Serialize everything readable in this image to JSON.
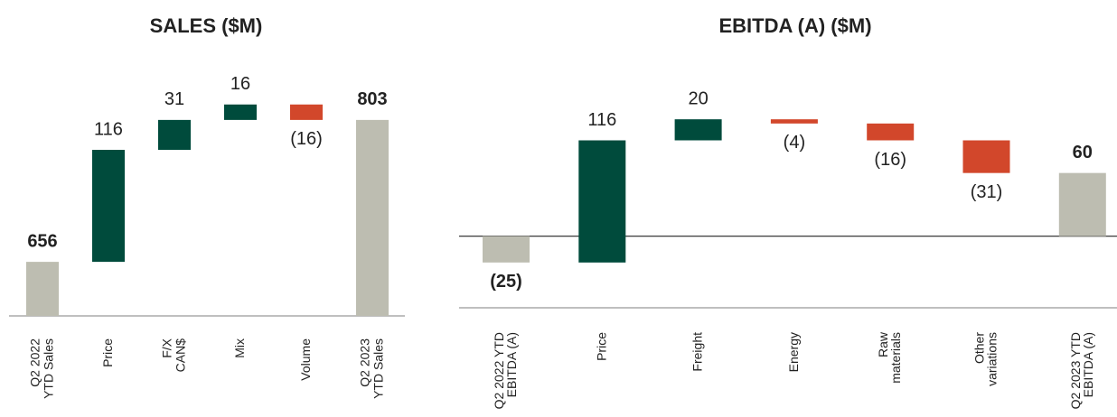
{
  "chart_data": [
    {
      "type": "waterfall",
      "title": "SALES ($M)",
      "categories": [
        "Q2 2022\nYTD Sales",
        "Price",
        "F/X\nCAN$",
        "Mix",
        "Volume",
        "Q2 2023\nYTD Sales"
      ],
      "values": [
        656,
        116,
        31,
        16,
        -16,
        803
      ],
      "value_labels": [
        "656",
        "116",
        "31",
        "16",
        "(16)",
        "803"
      ],
      "total_color": "#bdbdb1",
      "increase_color": "#004b3c",
      "decrease_color": "#d2472b",
      "ylim": [
        600,
        830
      ]
    },
    {
      "type": "waterfall",
      "title": "EBITDA (A) ($M)",
      "categories": [
        "Q2 2022 YTD\nEBITDA (A)",
        "Price",
        "Freight",
        "Energy",
        "Raw\nmaterials",
        "Other\nvariations",
        "Q2 2023 YTD\nEBITDA (A)"
      ],
      "values": [
        -25,
        116,
        20,
        -4,
        -16,
        -31,
        60
      ],
      "value_labels": [
        "(25)",
        "116",
        "20",
        "(4)",
        "(16)",
        "(31)",
        "60"
      ],
      "total_color": "#bdbdb1",
      "increase_color": "#004b3c",
      "decrease_color": "#d2472b",
      "ylim": [
        -68,
        130
      ]
    }
  ]
}
